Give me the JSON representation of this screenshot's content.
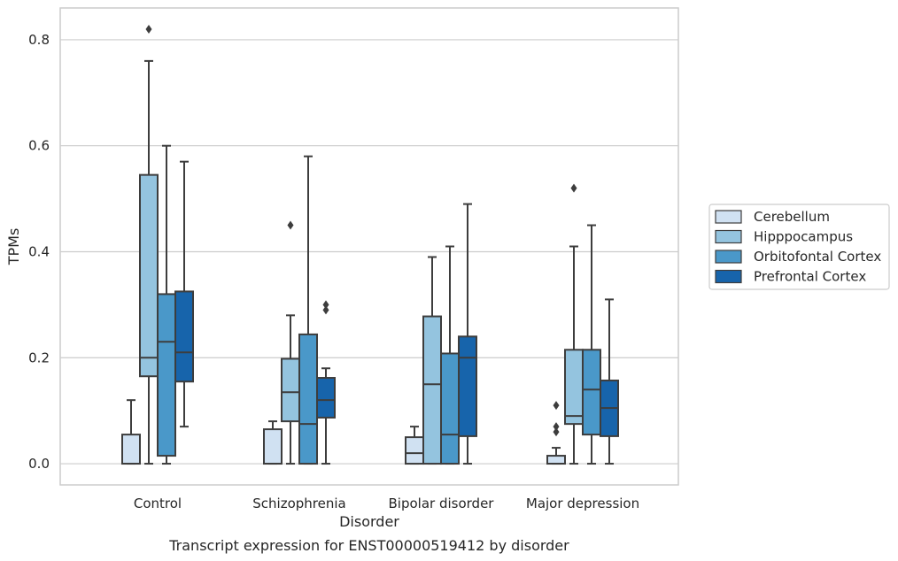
{
  "chart_data": {
    "type": "box",
    "title": "",
    "caption": "Transcript expression for ENST00000519412 by disorder",
    "xlabel": "Disorder",
    "ylabel": "TPMs",
    "ylim": [
      -0.04,
      0.86
    ],
    "yticks": [
      "0.0",
      "0.2",
      "0.4",
      "0.6",
      "0.8"
    ],
    "grid": "horizontal",
    "legend_position": "right",
    "categories": [
      "Control",
      "Schizophrenia",
      "Bipolar disorder",
      "Major depression"
    ],
    "series": [
      {
        "name": "Cerebellum",
        "color": "#d0e1f2",
        "boxes": [
          {
            "min": 0.0,
            "q1": 0.0,
            "median": 0.0,
            "q3": 0.055,
            "max": 0.12,
            "outliers": []
          },
          {
            "min": 0.0,
            "q1": 0.0,
            "median": 0.0,
            "q3": 0.065,
            "max": 0.08,
            "outliers": []
          },
          {
            "min": 0.0,
            "q1": 0.0,
            "median": 0.02,
            "q3": 0.05,
            "max": 0.07,
            "outliers": []
          },
          {
            "min": 0.0,
            "q1": 0.0,
            "median": 0.0,
            "q3": 0.015,
            "max": 0.03,
            "outliers": [
              0.06,
              0.07,
              0.11
            ]
          }
        ]
      },
      {
        "name": "Hipppocampus",
        "color": "#94c4df",
        "boxes": [
          {
            "min": 0.0,
            "q1": 0.165,
            "median": 0.2,
            "q3": 0.545,
            "max": 0.76,
            "outliers": [
              0.82
            ]
          },
          {
            "min": 0.0,
            "q1": 0.08,
            "median": 0.135,
            "q3": 0.198,
            "max": 0.28,
            "outliers": [
              0.45
            ]
          },
          {
            "min": 0.0,
            "q1": 0.0,
            "median": 0.15,
            "q3": 0.278,
            "max": 0.39,
            "outliers": []
          },
          {
            "min": 0.0,
            "q1": 0.075,
            "median": 0.09,
            "q3": 0.215,
            "max": 0.41,
            "outliers": [
              0.52
            ]
          }
        ]
      },
      {
        "name": "Orbitofontal Cortex",
        "color": "#4a98c9",
        "boxes": [
          {
            "min": 0.0,
            "q1": 0.015,
            "median": 0.23,
            "q3": 0.32,
            "max": 0.6,
            "outliers": []
          },
          {
            "min": 0.0,
            "q1": 0.0,
            "median": 0.075,
            "q3": 0.244,
            "max": 0.58,
            "outliers": []
          },
          {
            "min": 0.0,
            "q1": 0.0,
            "median": 0.055,
            "q3": 0.208,
            "max": 0.41,
            "outliers": []
          },
          {
            "min": 0.0,
            "q1": 0.055,
            "median": 0.14,
            "q3": 0.215,
            "max": 0.45,
            "outliers": []
          }
        ]
      },
      {
        "name": "Prefrontal Cortex",
        "color": "#1764ab",
        "boxes": [
          {
            "min": 0.07,
            "q1": 0.155,
            "median": 0.21,
            "q3": 0.325,
            "max": 0.57,
            "outliers": []
          },
          {
            "min": 0.0,
            "q1": 0.087,
            "median": 0.12,
            "q3": 0.162,
            "max": 0.18,
            "outliers": [
              0.29,
              0.3
            ]
          },
          {
            "min": 0.0,
            "q1": 0.052,
            "median": 0.2,
            "q3": 0.24,
            "max": 0.49,
            "outliers": []
          },
          {
            "min": 0.0,
            "q1": 0.052,
            "median": 0.105,
            "q3": 0.157,
            "max": 0.31,
            "outliers": []
          }
        ]
      }
    ]
  }
}
